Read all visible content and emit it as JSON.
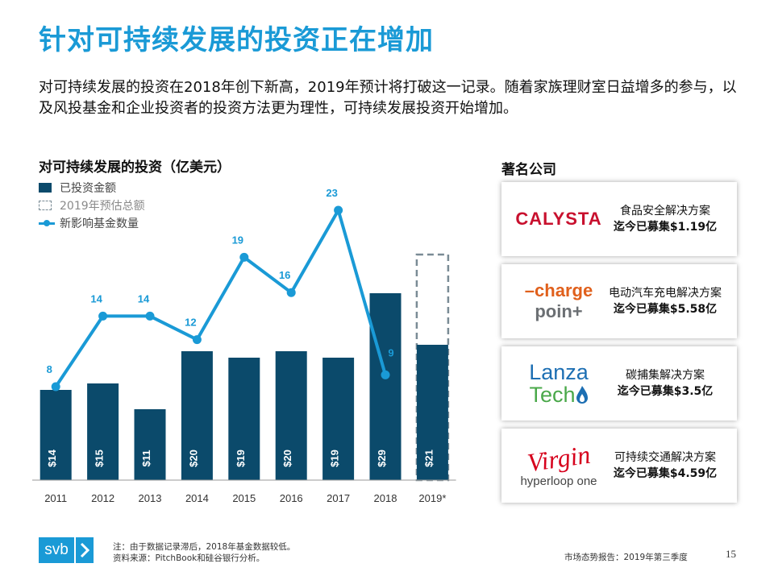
{
  "title": "针对可持续发展的投资正在增加",
  "intro": "对可持续发展的投资在2018年创下新高，2019年预计将打破这一记录。随着家族理财室日益增多的参与，以及风投基金和企业投资者的投资方法更为理性，可持续发展投资开始增加。",
  "chart": {
    "title": "对可持续发展的投资（亿美元）",
    "legend": [
      {
        "label": "已投资金额"
      },
      {
        "label": "2019年预估总额"
      },
      {
        "label": "新影响基金数量"
      }
    ]
  },
  "chart_data": {
    "type": "bar",
    "categories": [
      "2011",
      "2012",
      "2013",
      "2014",
      "2015",
      "2016",
      "2017",
      "2018",
      "2019*"
    ],
    "series": [
      {
        "name": "已投资金额",
        "type": "bar",
        "values": [
          14,
          15,
          11,
          20,
          19,
          20,
          19,
          29,
          21
        ],
        "labels": [
          "$14",
          "$15",
          "$11",
          "$20",
          "$19",
          "$20",
          "$19",
          "$29",
          "$21"
        ]
      },
      {
        "name": "2019年预估总额",
        "type": "bar-outline",
        "values": [
          null,
          null,
          null,
          null,
          null,
          null,
          null,
          null,
          35
        ]
      },
      {
        "name": "新影响基金数量",
        "type": "line",
        "values": [
          8,
          14,
          14,
          12,
          19,
          16,
          23,
          9,
          null
        ]
      }
    ],
    "colors": {
      "bar": "#0b4a6b",
      "line": "#1a9ad6",
      "estimate": "#7a8b95"
    },
    "legend_position": "top-left",
    "grid": false
  },
  "companies": {
    "title": "著名公司",
    "items": [
      {
        "logo_text": "CALYSTA",
        "desc": "食品安全解决方案",
        "raised": "迄今已募集$1.19亿"
      },
      {
        "logo_text_1": "charge",
        "logo_text_2": "poin+",
        "desc": "电动汽车充电解决方案",
        "raised": "迄今已募集$5.58亿"
      },
      {
        "logo_text_1": "Lanza",
        "logo_text_2": "Tech",
        "desc": "碳捕集解决方案",
        "raised": "迄今已募集$3.5亿"
      },
      {
        "logo_text_1": "Virgin",
        "logo_text_2": "hyperloop one",
        "desc": "可持续交通解决方案",
        "raised": "迄今已募集$4.59亿"
      }
    ]
  },
  "footer": {
    "logo": "svb",
    "note": "注：由于数据记录滞后，2018年基金数据较低。",
    "source": "资料来源：PitchBook和硅谷银行分析。",
    "report": "市场态势报告：2019年第三季度",
    "page": "15"
  }
}
